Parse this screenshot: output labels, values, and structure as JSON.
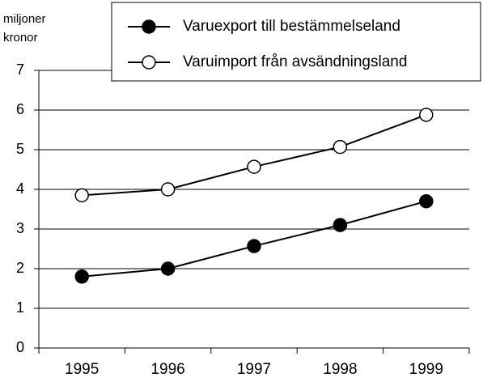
{
  "chart_data": {
    "type": "line",
    "y_label": [
      "miljoner",
      "kronor"
    ],
    "categories": [
      "1995",
      "1996",
      "1997",
      "1998",
      "1999"
    ],
    "series": [
      {
        "name": "Varuexport till bestämmelseland",
        "color": "#000000",
        "marker_fill": "#000000",
        "values": [
          1.8,
          2.0,
          2.57,
          3.1,
          3.7
        ]
      },
      {
        "name": "Varuimport från avsändningsland",
        "color": "#000000",
        "marker_fill": "#ffffff",
        "values": [
          3.85,
          4.0,
          4.57,
          5.07,
          5.88
        ]
      }
    ],
    "ylim": [
      0,
      7
    ],
    "yticks": [
      0,
      1,
      2,
      3,
      4,
      5,
      6,
      7
    ],
    "grid": true,
    "legend": "top-right"
  }
}
